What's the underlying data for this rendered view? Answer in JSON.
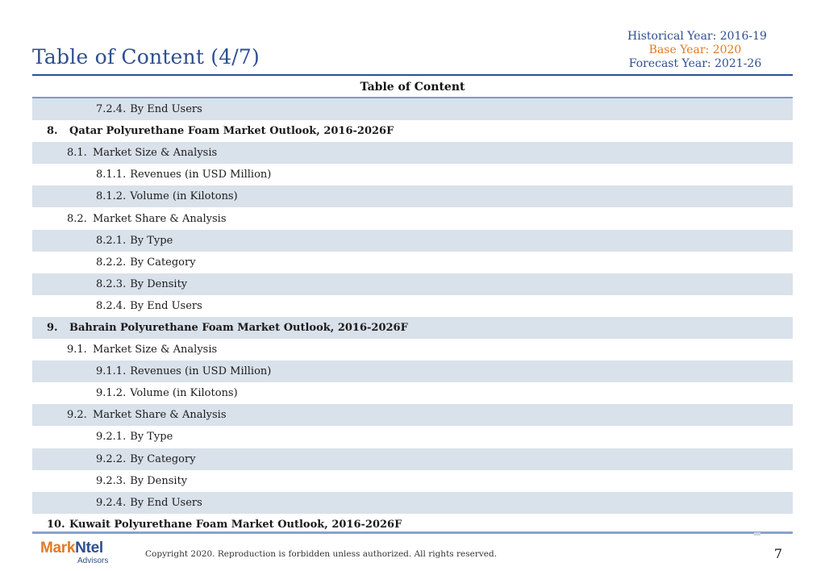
{
  "header": {
    "title": "Table of Content (4/7)",
    "historical_year": "Historical Year: 2016-19",
    "base_year": "Base Year: 2020",
    "forecast_year": "Forecast Year: 2021-26"
  },
  "toc": {
    "heading": "Table of Content",
    "rows": [
      {
        "level": 3,
        "num": "7.2.4.",
        "text": "By End Users"
      },
      {
        "level": 1,
        "num": "8.",
        "text": "Qatar Polyurethane Foam Market Outlook, 2016-2026F"
      },
      {
        "level": 2,
        "num": "8.1.",
        "text": "Market Size & Analysis"
      },
      {
        "level": 3,
        "num": "8.1.1.",
        "text": "Revenues (in USD Million)"
      },
      {
        "level": 3,
        "num": "8.1.2.",
        "text": "Volume (in Kilotons)"
      },
      {
        "level": 2,
        "num": "8.2.",
        "text": "Market Share & Analysis"
      },
      {
        "level": 3,
        "num": "8.2.1.",
        "text": "By Type"
      },
      {
        "level": 3,
        "num": "8.2.2.",
        "text": "By Category"
      },
      {
        "level": 3,
        "num": "8.2.3.",
        "text": "By Density"
      },
      {
        "level": 3,
        "num": "8.2.4.",
        "text": "By End Users"
      },
      {
        "level": 1,
        "num": "9.",
        "text": "Bahrain Polyurethane Foam Market Outlook, 2016-2026F"
      },
      {
        "level": 2,
        "num": "9.1.",
        "text": "Market Size & Analysis"
      },
      {
        "level": 3,
        "num": "9.1.1.",
        "text": "Revenues (in USD Million)"
      },
      {
        "level": 3,
        "num": "9.1.2.",
        "text": "Volume (in Kilotons)"
      },
      {
        "level": 2,
        "num": "9.2.",
        "text": "Market Share & Analysis"
      },
      {
        "level": 3,
        "num": "9.2.1.",
        "text": "By Type"
      },
      {
        "level": 3,
        "num": "9.2.2.",
        "text": "By Category"
      },
      {
        "level": 3,
        "num": "9.2.3.",
        "text": "By Density"
      },
      {
        "level": 3,
        "num": "9.2.4.",
        "text": "By End Users"
      },
      {
        "level": 1,
        "num": "10.",
        "text": "Kuwait Polyurethane Foam Market Outlook, 2016-2026F"
      }
    ]
  },
  "footer": {
    "logo_mark": "Mark",
    "logo_ntel": "Ntel",
    "logo_sub": "Advisors",
    "copyright": "Copyright 2020. Reproduction is forbidden unless authorized. All rights reserved.",
    "page_number": "7"
  },
  "colors": {
    "title_blue": "#2e4f8f",
    "base_year_orange": "#e07b25",
    "row_shade": "#d9e1ea"
  }
}
